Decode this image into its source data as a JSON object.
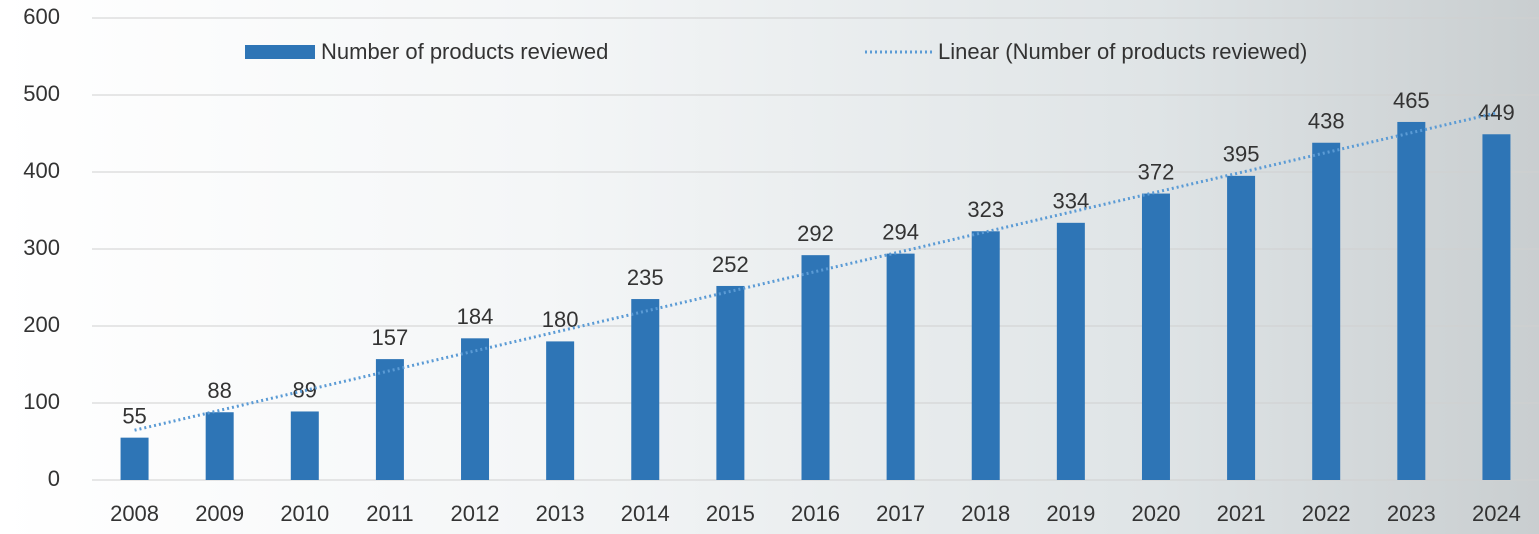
{
  "chart_data": {
    "type": "bar",
    "categories": [
      "2008",
      "2009",
      "2010",
      "2011",
      "2012",
      "2013",
      "2014",
      "2015",
      "2016",
      "2017",
      "2018",
      "2019",
      "2020",
      "2021",
      "2022",
      "2023",
      "2024"
    ],
    "series": [
      {
        "name": "Number of products reviewed",
        "color": "#2e75b6",
        "values": [
          55,
          88,
          89,
          157,
          184,
          180,
          235,
          252,
          292,
          294,
          323,
          334,
          372,
          395,
          438,
          465,
          449
        ]
      }
    ],
    "trendline": {
      "name": "Linear (Number of products reviewed)",
      "color": "#5b9bd5",
      "kind": "linear"
    },
    "ylim": [
      0,
      600
    ],
    "yticks": [
      0,
      100,
      200,
      300,
      400,
      500,
      600
    ],
    "grid": true,
    "data_labels": true
  }
}
